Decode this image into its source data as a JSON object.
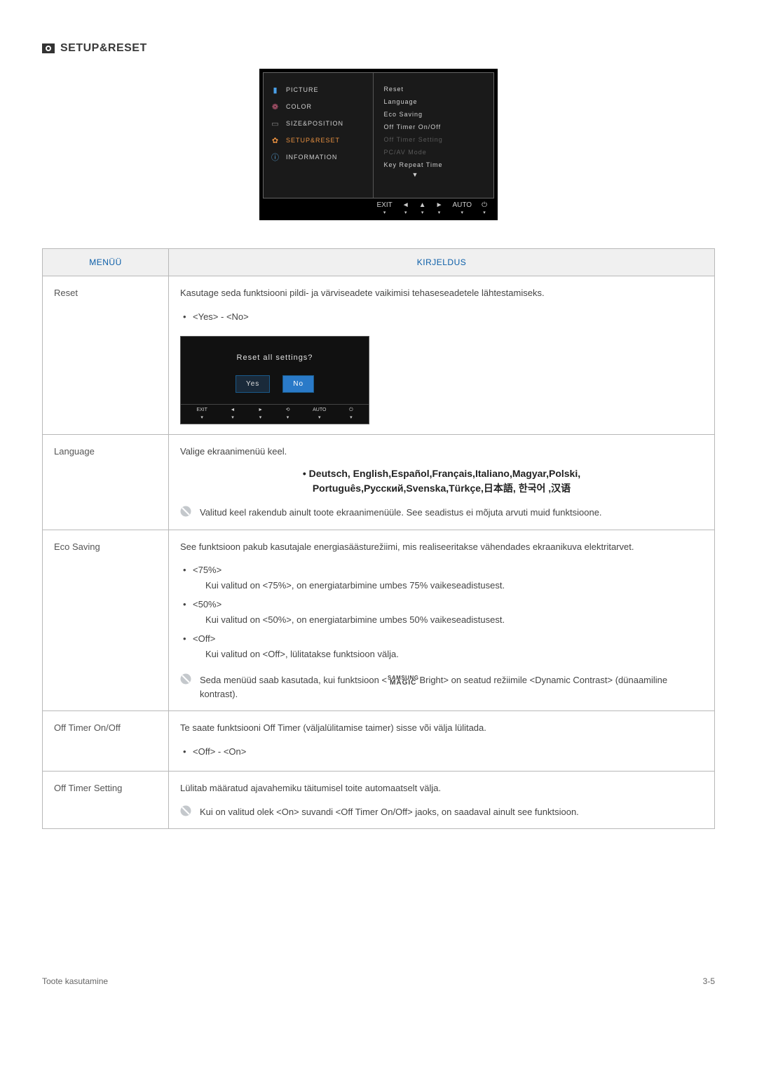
{
  "header": {
    "title": "SETUP&RESET"
  },
  "osd": {
    "left_items": [
      {
        "label": "PICTURE",
        "icon": "▮",
        "icon_color": "#4aa0e8"
      },
      {
        "label": "COLOR",
        "icon": "❁",
        "icon_color": "#d06080"
      },
      {
        "label": "SIZE&POSITION",
        "icon": "▭",
        "icon_color": "#8a8a8a"
      },
      {
        "label": "SETUP&RESET",
        "icon": "✿",
        "icon_color": "#e89040",
        "active": true
      },
      {
        "label": "INFORMATION",
        "icon": "ⓘ",
        "icon_color": "#5aa8e0"
      }
    ],
    "right_items": [
      {
        "label": "Reset"
      },
      {
        "label": "Language"
      },
      {
        "label": "Eco Saving"
      },
      {
        "label": "Off Timer On/Off"
      },
      {
        "label": "Off Timer Setting",
        "dimmed": true
      },
      {
        "label": "PC/AV Mode",
        "dimmed": true
      },
      {
        "label": "Key Repeat Time"
      }
    ],
    "bottom_buttons": [
      "EXIT",
      "◄",
      "▲",
      "►",
      "AUTO",
      "⏻"
    ]
  },
  "table": {
    "headers": [
      "MENÜÜ",
      "KIRJELDUS"
    ],
    "rows": {
      "reset": {
        "label": "Reset",
        "desc": "Kasutage seda funktsiooni pildi- ja värviseadete vaikimisi tehaseseadetele lähtestamiseks.",
        "option": "<Yes> - <No>",
        "dialog": {
          "question": "Reset all settings?",
          "yes": "Yes",
          "no": "No",
          "buttons": [
            "EXIT",
            "◄",
            "►",
            "⟲",
            "AUTO",
            "⏻"
          ]
        }
      },
      "language": {
        "label": "Language",
        "desc": "Valige ekraanimenüü keel.",
        "list_line1": "• Deutsch, English,Español,Français,Italiano,Magyar,Polski,",
        "list_line2": "Português,Русский,Svenska,Türkçe,日本語, 한국어 ,汉语",
        "note": "Valitud keel rakendub ainult toote ekraanimenüüle. See seadistus ei mõjuta arvuti muid funktsioone."
      },
      "eco": {
        "label": "Eco Saving",
        "desc": "See funktsioon pakub kasutajale energiasäästurežiimi, mis realiseeritakse vähendades ekraanikuva elektritarvet.",
        "opts": [
          {
            "head": "<75%>",
            "body": "Kui valitud on <75%>, on energiatarbimine umbes 75% vaikeseadistusest."
          },
          {
            "head": "<50%>",
            "body": "Kui valitud on <50%>, on energiatarbimine umbes 50% vaikeseadistusest."
          },
          {
            "head": "<Off>",
            "body": "Kui valitud on <Off>, lülitatakse funktsioon välja."
          }
        ],
        "note_pre": "Seda menüüd saab kasutada, kui funktsioon <",
        "note_post": "Bright> on seatud režiimile <Dynamic Contrast> (dünaamiline kontrast).",
        "magic_top": "SAMSUNG",
        "magic_bot": "MAGIC"
      },
      "offtimer": {
        "label": "Off Timer On/Off",
        "desc": "Te saate funktsiooni Off Timer (väljalülitamise taimer) sisse või välja lülitada.",
        "option": "<Off> - <On>"
      },
      "offtimerset": {
        "label": "Off Timer Setting",
        "desc": "Lülitab määratud ajavahemiku täitumisel toite automaatselt välja.",
        "note": "Kui on valitud olek <On> suvandi <Off Timer On/Off> jaoks, on saadaval ainult see funktsioon."
      }
    }
  },
  "footer": {
    "left": "Toote kasutamine",
    "right": "3-5"
  },
  "colors": {
    "header_blue": "#0b5ea8",
    "accent_orange": "#e89040",
    "border": "#b8b8b8",
    "note_icon": "#9aa0a6"
  }
}
